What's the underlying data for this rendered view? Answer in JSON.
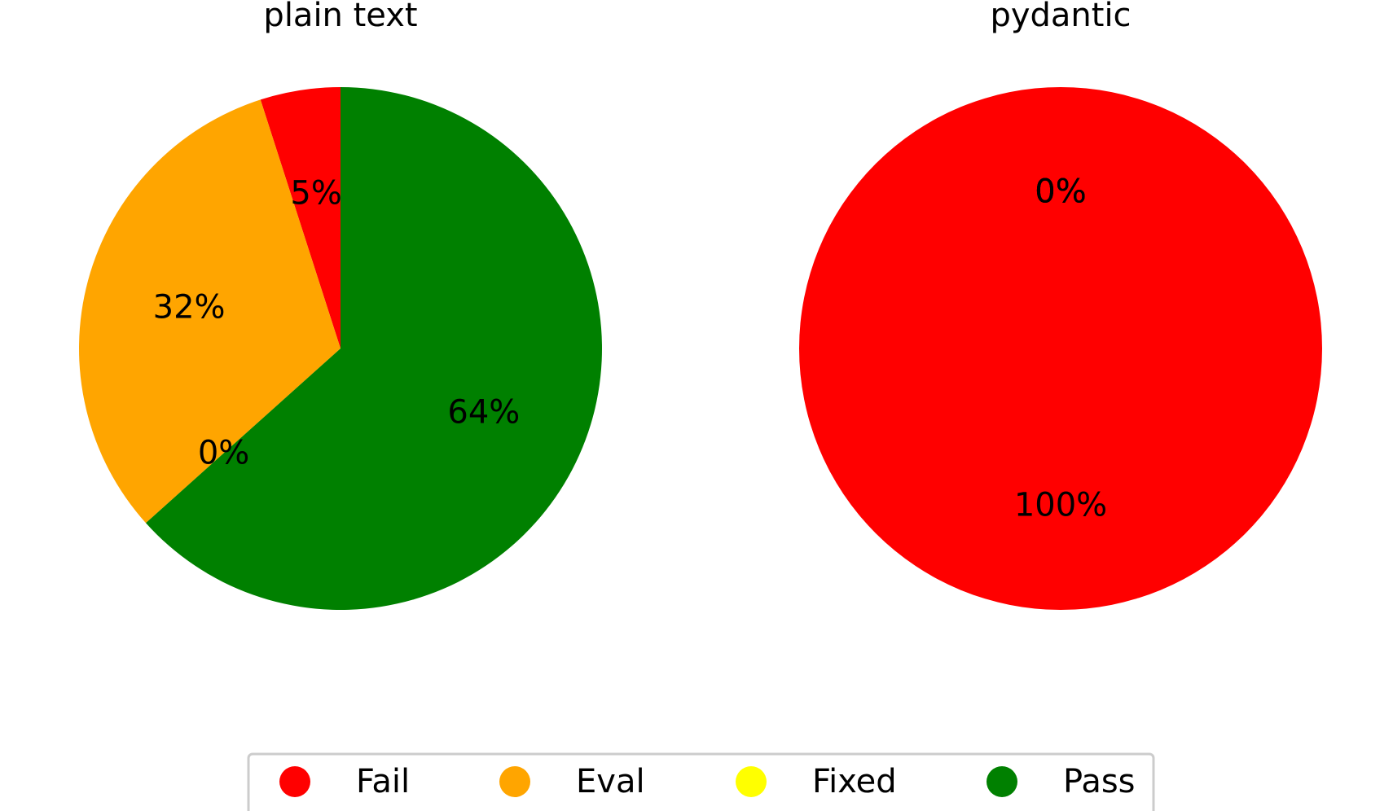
{
  "chart_data": [
    {
      "type": "pie",
      "title": "plain text",
      "slices": [
        {
          "label": "Fail",
          "value": 5,
          "value_label": "5%",
          "color": "#ff0000"
        },
        {
          "label": "Eval",
          "value": 32,
          "value_label": "32%",
          "color": "#ffa500"
        },
        {
          "label": "Fixed",
          "value": 0,
          "value_label": "0%",
          "color": "#ffff00"
        },
        {
          "label": "Pass",
          "value": 64,
          "value_label": "64%",
          "color": "#008000"
        }
      ]
    },
    {
      "type": "pie",
      "title": "pydantic",
      "slices": [
        {
          "label": "Fail",
          "value": 100,
          "value_label": "100%",
          "color": "#ff0000"
        },
        {
          "label": "Eval",
          "value": 0,
          "value_label": "0%",
          "color": "#ffa500"
        },
        {
          "label": "Fixed",
          "value": 0,
          "value_label": "0%",
          "color": "#ffff00"
        },
        {
          "label": "Pass",
          "value": 0,
          "value_label": "0%",
          "color": "#008000"
        }
      ]
    }
  ],
  "legend": {
    "placement": "bottom-center",
    "items": [
      {
        "label": "Fail",
        "color": "#ff0000"
      },
      {
        "label": "Eval",
        "color": "#ffa500"
      },
      {
        "label": "Fixed",
        "color": "#ffff00"
      },
      {
        "label": "Pass",
        "color": "#008000"
      }
    ]
  }
}
